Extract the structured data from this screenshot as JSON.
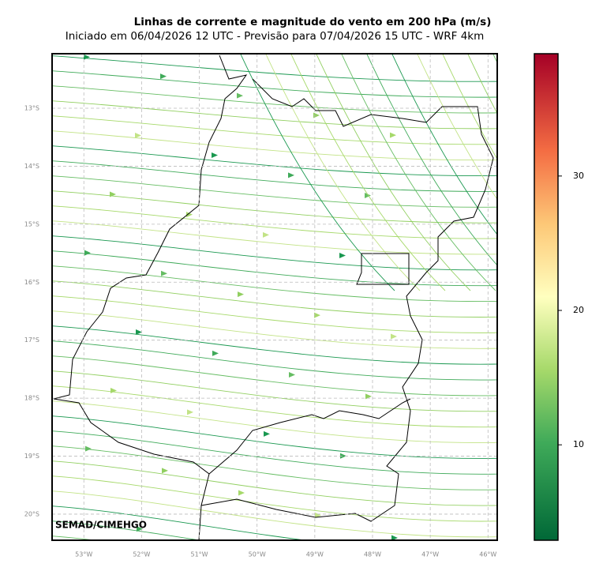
{
  "title": "Linhas de corrente e magnitude do vento em 200 hPa (m/s)",
  "subtitle": "Iniciado em 06/04/2026 12 UTC - Previsão para 07/04/2026 15 UTC - WRF 4km",
  "map": {
    "lonlim": [
      -53.55,
      -45.84
    ],
    "latlim": [
      -20.45,
      -12.06
    ],
    "lon_ticks": [
      {
        "value": -53,
        "label": "53°W"
      },
      {
        "value": -52,
        "label": "52°W"
      },
      {
        "value": -51,
        "label": "51°W"
      },
      {
        "value": -50,
        "label": "50°W"
      },
      {
        "value": -49,
        "label": "49°W"
      },
      {
        "value": -48,
        "label": "48°W"
      },
      {
        "value": -47,
        "label": "47°W"
      },
      {
        "value": -46,
        "label": "46°W"
      }
    ],
    "lat_ticks": [
      {
        "value": -13,
        "label": "13°S"
      },
      {
        "value": -14,
        "label": "14°S"
      },
      {
        "value": -15,
        "label": "15°S"
      },
      {
        "value": -16,
        "label": "16°S"
      },
      {
        "value": -17,
        "label": "17°S"
      },
      {
        "value": -18,
        "label": "18°S"
      },
      {
        "value": -19,
        "label": "19°S"
      },
      {
        "value": -20,
        "label": "20°S"
      }
    ],
    "credit": "SEMAD/CIMEHGO"
  },
  "colorbar": {
    "lim": [
      2.9,
      39.1
    ],
    "ticks": [
      10,
      20,
      30
    ]
  }
}
